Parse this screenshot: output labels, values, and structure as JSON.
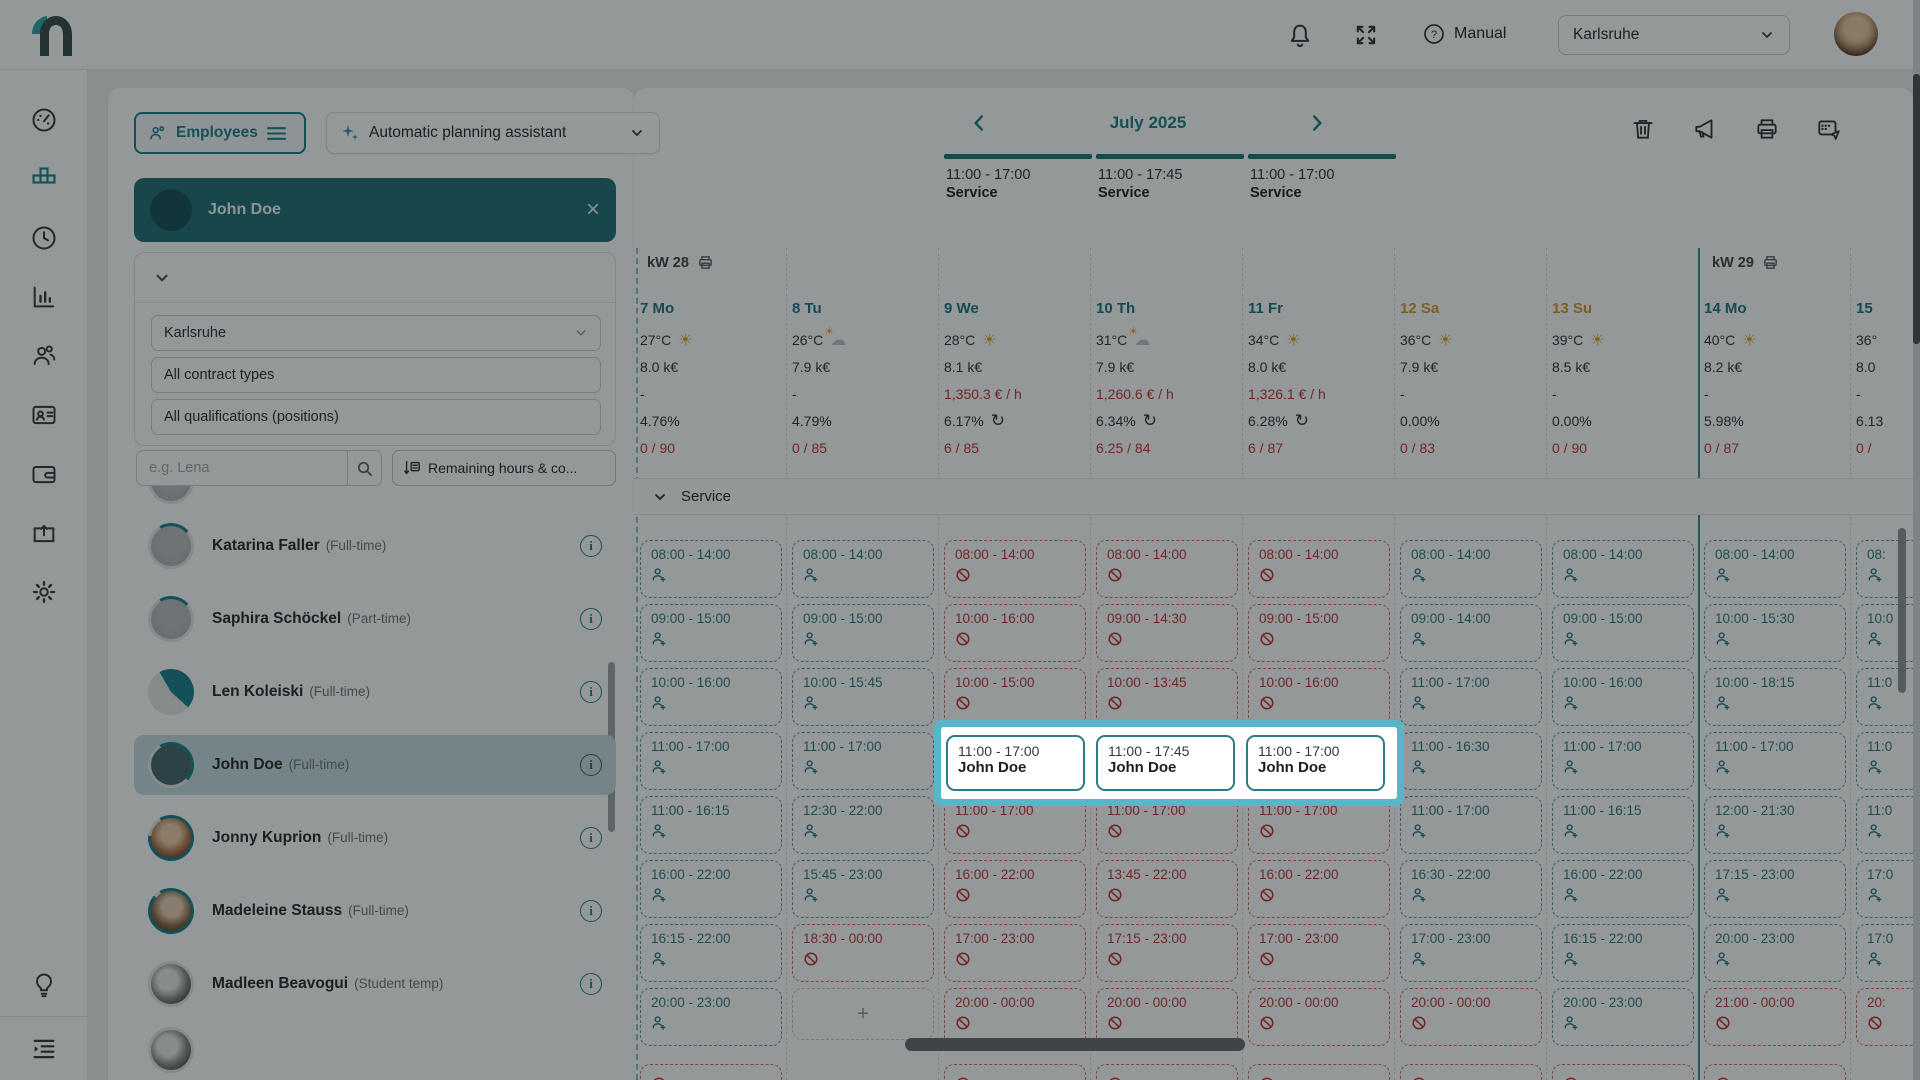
{
  "colors": {
    "accent": "#1a7f8a",
    "selected_teal": "#1f6e75",
    "highlight": "#57b7c8",
    "blocked_red": "#bf3434",
    "weekend": "#cf9b2f",
    "week_bar": "#20727c"
  },
  "topbar": {
    "manual_label": "Manual",
    "location": "Karlsruhe",
    "icons": [
      "bell-icon",
      "fullscreen-icon",
      "help-icon"
    ]
  },
  "sidebar": {
    "icons": [
      {
        "name": "dashboard",
        "icon": "gauge",
        "active": false
      },
      {
        "name": "planning",
        "icon": "grid",
        "active": true
      },
      {
        "name": "time-tracking",
        "icon": "clock",
        "active": false
      },
      {
        "name": "reports",
        "icon": "chart",
        "active": false
      },
      {
        "name": "employees",
        "icon": "people",
        "active": false
      },
      {
        "name": "badge",
        "icon": "idcard",
        "active": false
      },
      {
        "name": "wallet",
        "icon": "wallet",
        "active": false
      },
      {
        "name": "export",
        "icon": "boxup",
        "active": false
      },
      {
        "name": "settings",
        "icon": "gear",
        "active": false
      }
    ],
    "bottom_icons": [
      {
        "name": "tips",
        "icon": "bulb"
      },
      {
        "name": "menu",
        "icon": "menulist"
      }
    ]
  },
  "panel": {
    "employees_button": "Employees",
    "assistant_button": "Automatic planning assistant",
    "selected_employee_name": "John Doe",
    "filters": {
      "collapse": "collapse-filters",
      "location": "Karlsruhe",
      "contract": "All contract types",
      "qualifications": "All qualifications (positions)"
    },
    "search_placeholder": "e.g. Lena",
    "sort_button_label": "Remaining hours & co...",
    "employees": [
      {
        "name": "Katarina Faller",
        "contract": "(Full-time)",
        "avatar": "plain",
        "ring": 0.22,
        "selected": false
      },
      {
        "name": "Saphira Schöckel",
        "contract": "(Part-time)",
        "avatar": "plain",
        "ring": 0.22,
        "selected": false
      },
      {
        "name": "Len Koleiski",
        "contract": "(Full-time)",
        "avatar": "photo-len",
        "ring": 0.45,
        "selected": false
      },
      {
        "name": "John Doe",
        "contract": "(Full-time)",
        "avatar": "dark",
        "ring": 0.45,
        "selected": true
      },
      {
        "name": "Jonny Kuprion",
        "contract": "(Full-time)",
        "avatar": "photo-jonny",
        "ring": 0.85,
        "selected": false
      },
      {
        "name": "Madeleine Stauss",
        "contract": "(Full-time)",
        "avatar": "photo-madeleine",
        "ring": 0.95,
        "selected": false
      },
      {
        "name": "Madleen Beavogui",
        "contract": "(Student temp)",
        "avatar": "photo-madleen",
        "ring": 0,
        "selected": false
      }
    ]
  },
  "calendar": {
    "month": "July 2025",
    "toolbar": [
      {
        "name": "delete",
        "icon": "trash"
      },
      {
        "name": "announce",
        "icon": "megaphone"
      },
      {
        "name": "print",
        "icon": "printer"
      },
      {
        "name": "publish-schedule",
        "icon": "calsend"
      }
    ],
    "pinned_shifts": [
      {
        "time": "11:00 - 17:00",
        "label": "Service"
      },
      {
        "time": "11:00 - 17:45",
        "label": "Service"
      },
      {
        "time": "11:00 - 17:00",
        "label": "Service"
      }
    ],
    "weeks": [
      {
        "label": "kW 28"
      },
      {
        "label": "kW 29"
      }
    ],
    "days": [
      {
        "label": "7 Mo",
        "weekend": false,
        "temp": "27°C",
        "weather": "sun",
        "revenue": "8.0 k€",
        "rate": "-",
        "percent": "4.76%",
        "refresh": false,
        "ratio": "0 / 90"
      },
      {
        "label": "8 Tu",
        "weekend": false,
        "temp": "26°C",
        "weather": "partly",
        "revenue": "7.9 k€",
        "rate": "-",
        "percent": "4.79%",
        "refresh": false,
        "ratio": "0 / 85"
      },
      {
        "label": "9 We",
        "weekend": false,
        "temp": "28°C",
        "weather": "sun",
        "revenue": "8.1 k€",
        "rate": "1,350.3 € / h",
        "percent": "6.17%",
        "refresh": true,
        "ratio": "6 / 85"
      },
      {
        "label": "10 Th",
        "weekend": false,
        "temp": "31°C",
        "weather": "partly",
        "revenue": "7.9 k€",
        "rate": "1,260.6 € / h",
        "percent": "6.34%",
        "refresh": true,
        "ratio": "6.25 / 84"
      },
      {
        "label": "11 Fr",
        "weekend": false,
        "temp": "34°C",
        "weather": "sun",
        "revenue": "8.0 k€",
        "rate": "1,326.1 € / h",
        "percent": "6.28%",
        "refresh": true,
        "ratio": "6 / 87"
      },
      {
        "label": "12 Sa",
        "weekend": true,
        "temp": "36°C",
        "weather": "sun",
        "revenue": "7.9 k€",
        "rate": "-",
        "percent": "0.00%",
        "refresh": false,
        "ratio": "0 / 83"
      },
      {
        "label": "13 Su",
        "weekend": true,
        "temp": "39°C",
        "weather": "sun",
        "revenue": "8.5 k€",
        "rate": "-",
        "percent": "0.00%",
        "refresh": false,
        "ratio": "0 / 90"
      },
      {
        "label": "14 Mo",
        "weekend": false,
        "temp": "40°C",
        "weather": "sun",
        "revenue": "8.2 k€",
        "rate": "-",
        "percent": "5.98%",
        "refresh": false,
        "ratio": "0 / 87"
      },
      {
        "label": "15",
        "weekend": false,
        "temp": "36°",
        "weather": null,
        "revenue": "8.0",
        "rate": "-",
        "percent": "6.13",
        "refresh": false,
        "ratio": "0 /"
      }
    ],
    "section_label": "Service",
    "grid_columns": [
      {
        "day": "7 Mo",
        "cells": [
          {
            "time": "08:00 - 14:00",
            "type": "open"
          },
          {
            "time": "09:00 - 15:00",
            "type": "open"
          },
          {
            "time": "10:00 - 16:00",
            "type": "open"
          },
          {
            "time": "11:00 - 17:00",
            "type": "open"
          },
          {
            "time": "11:00 - 16:15",
            "type": "open"
          },
          {
            "time": "16:00 - 22:00",
            "type": "open"
          },
          {
            "time": "16:15 - 22:00",
            "type": "open"
          },
          {
            "time": "20:00 - 23:00",
            "type": "open"
          },
          {
            "time": "",
            "type": "blocked"
          }
        ]
      },
      {
        "day": "8 Tu",
        "cells": [
          {
            "time": "08:00 - 14:00",
            "type": "open"
          },
          {
            "time": "09:00 - 15:00",
            "type": "open"
          },
          {
            "time": "10:00 - 15:45",
            "type": "open"
          },
          {
            "time": "11:00 - 17:00",
            "type": "open"
          },
          {
            "time": "12:30 - 22:00",
            "type": "open"
          },
          {
            "time": "15:45 - 23:00",
            "type": "open"
          },
          {
            "time": "18:30 - 00:00",
            "type": "blocked"
          },
          {
            "time": "+",
            "type": "add"
          }
        ]
      },
      {
        "day": "9 We",
        "cells": [
          {
            "time": "08:00 - 14:00",
            "type": "blocked"
          },
          {
            "time": "10:00 - 16:00",
            "type": "blocked"
          },
          {
            "time": "10:00 - 15:00",
            "type": "blocked"
          },
          {
            "time": "",
            "type": "hidden"
          },
          {
            "time": "11:00 - 17:00",
            "type": "blocked"
          },
          {
            "time": "16:00 - 22:00",
            "type": "blocked"
          },
          {
            "time": "17:00 - 23:00",
            "type": "blocked"
          },
          {
            "time": "20:00 - 00:00",
            "type": "blocked"
          },
          {
            "time": "",
            "type": "blocked"
          }
        ]
      },
      {
        "day": "10 Th",
        "cells": [
          {
            "time": "08:00 - 14:00",
            "type": "blocked"
          },
          {
            "time": "09:00 - 14:30",
            "type": "blocked"
          },
          {
            "time": "10:00 - 13:45",
            "type": "blocked"
          },
          {
            "time": "",
            "type": "hidden"
          },
          {
            "time": "11:00 - 17:00",
            "type": "blocked"
          },
          {
            "time": "13:45 - 22:00",
            "type": "blocked"
          },
          {
            "time": "17:15 - 23:00",
            "type": "blocked"
          },
          {
            "time": "20:00 - 00:00",
            "type": "blocked"
          },
          {
            "time": "",
            "type": "blocked"
          }
        ]
      },
      {
        "day": "11 Fr",
        "cells": [
          {
            "time": "08:00 - 14:00",
            "type": "blocked"
          },
          {
            "time": "09:00 - 15:00",
            "type": "blocked"
          },
          {
            "time": "10:00 - 16:00",
            "type": "blocked"
          },
          {
            "time": "",
            "type": "hidden"
          },
          {
            "time": "11:00 - 17:00",
            "type": "blocked"
          },
          {
            "time": "16:00 - 22:00",
            "type": "blocked"
          },
          {
            "time": "17:00 - 23:00",
            "type": "blocked"
          },
          {
            "time": "20:00 - 00:00",
            "type": "blocked"
          },
          {
            "time": "",
            "type": "blocked"
          }
        ]
      },
      {
        "day": "12 Sa",
        "cells": [
          {
            "time": "08:00 - 14:00",
            "type": "open"
          },
          {
            "time": "09:00 - 14:00",
            "type": "open"
          },
          {
            "time": "11:00 - 17:00",
            "type": "open"
          },
          {
            "time": "11:00 - 16:30",
            "type": "open"
          },
          {
            "time": "11:00 - 17:00",
            "type": "open"
          },
          {
            "time": "16:30 - 22:00",
            "type": "open"
          },
          {
            "time": "17:00 - 23:00",
            "type": "open"
          },
          {
            "time": "20:00 - 00:00",
            "type": "blocked"
          },
          {
            "time": "",
            "type": "blocked"
          }
        ]
      },
      {
        "day": "13 Su",
        "cells": [
          {
            "time": "08:00 - 14:00",
            "type": "open"
          },
          {
            "time": "09:00 - 15:00",
            "type": "open"
          },
          {
            "time": "10:00 - 16:00",
            "type": "open"
          },
          {
            "time": "11:00 - 17:00",
            "type": "open"
          },
          {
            "time": "11:00 - 16:15",
            "type": "open"
          },
          {
            "time": "16:00 - 22:00",
            "type": "open"
          },
          {
            "time": "16:15 - 22:00",
            "type": "open"
          },
          {
            "time": "20:00 - 23:00",
            "type": "open"
          },
          {
            "time": "",
            "type": "blocked"
          }
        ]
      },
      {
        "day": "14 Mo",
        "cells": [
          {
            "time": "08:00 - 14:00",
            "type": "open"
          },
          {
            "time": "10:00 - 15:30",
            "type": "open"
          },
          {
            "time": "10:00 - 18:15",
            "type": "open"
          },
          {
            "time": "11:00 - 17:00",
            "type": "open"
          },
          {
            "time": "12:00 - 21:30",
            "type": "open"
          },
          {
            "time": "17:15 - 23:00",
            "type": "open"
          },
          {
            "time": "20:00 - 23:00",
            "type": "open"
          },
          {
            "time": "21:00 - 00:00",
            "type": "blocked"
          },
          {
            "time": "",
            "type": "blocked"
          }
        ]
      },
      {
        "day": "15",
        "cells": [
          {
            "time": "08:",
            "type": "open"
          },
          {
            "time": "10:0",
            "type": "open"
          },
          {
            "time": "11:0",
            "type": "open"
          },
          {
            "time": "11:0",
            "type": "open"
          },
          {
            "time": "11:0",
            "type": "open"
          },
          {
            "time": "17:0",
            "type": "open"
          },
          {
            "time": "17:0",
            "type": "open"
          },
          {
            "time": "20:",
            "type": "blocked"
          }
        ]
      }
    ],
    "highlight_shifts": [
      {
        "time": "11:00 - 17:00",
        "name": "John Doe"
      },
      {
        "time": "11:00 - 17:45",
        "name": "John Doe"
      },
      {
        "time": "11:00 - 17:00",
        "name": "John Doe"
      }
    ]
  }
}
